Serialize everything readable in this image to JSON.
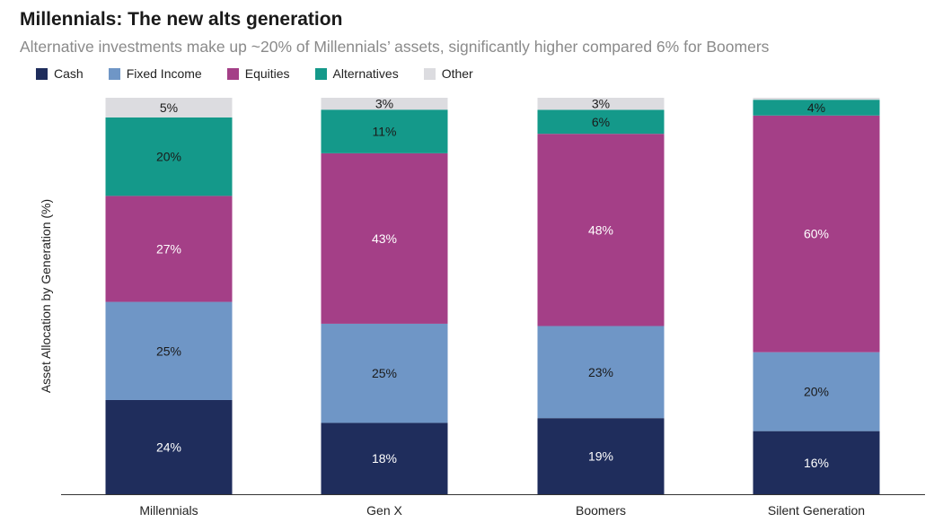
{
  "chart_data": {
    "type": "bar",
    "stacked": true,
    "title": "Millennials: The new alts generation",
    "subtitle": "Alternative investments make up ~20% of Millennials’ assets, significantly higher compared 6% for Boomers",
    "xlabel": "",
    "ylabel": "Asset Allocation by Generation (%)",
    "ylim": [
      0,
      100
    ],
    "grid": false,
    "legend_position": "top-left",
    "categories": [
      "Millennials",
      "Gen X",
      "Boomers",
      "Silent Generation"
    ],
    "series": [
      {
        "name": "Cash",
        "color": "#1f2d5c",
        "label_color": "#ffffff",
        "values": [
          24,
          18,
          19,
          16
        ]
      },
      {
        "name": "Fixed Income",
        "color": "#6f96c6",
        "label_color": "#1a1a1a",
        "values": [
          25,
          25,
          23,
          20
        ]
      },
      {
        "name": "Equities",
        "color": "#a43f87",
        "label_color": "#ffffff",
        "values": [
          27,
          43,
          48,
          60
        ]
      },
      {
        "name": "Alternatives",
        "color": "#14998a",
        "label_color": "#1a1a1a",
        "values": [
          20,
          11,
          6,
          4
        ]
      },
      {
        "name": "Other",
        "color": "#dcdce0",
        "label_color": "#1a1a1a",
        "values": [
          5,
          3,
          3,
          0.5
        ]
      }
    ],
    "data_labels": [
      [
        "24%",
        "18%",
        "19%",
        "16%"
      ],
      [
        "25%",
        "25%",
        "23%",
        "20%"
      ],
      [
        "27%",
        "43%",
        "48%",
        "60%"
      ],
      [
        "20%",
        "11%",
        "6%",
        "4%"
      ],
      [
        "5%",
        "3%",
        "3%",
        ""
      ]
    ]
  }
}
